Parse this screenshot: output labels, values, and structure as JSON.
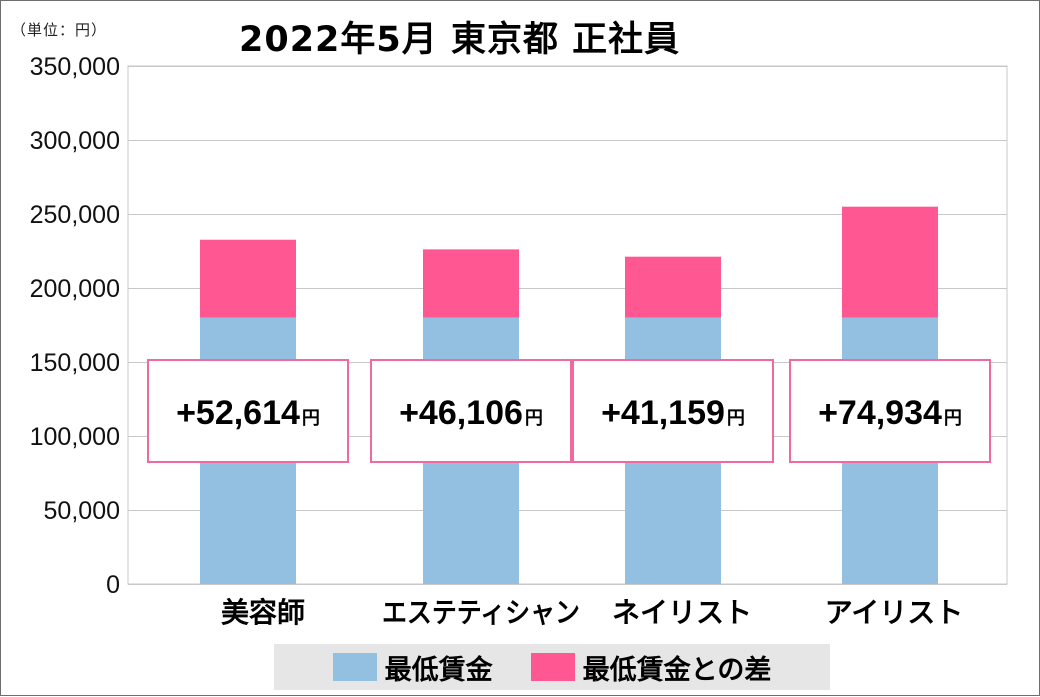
{
  "unit_label": "（単位：円）",
  "title": "2022年5月  東京都 正社員",
  "colors": {
    "base": "#93bfe0",
    "diff": "#ff5791",
    "diff_box_border": "#f06aa0",
    "grid": "#c8c8c8"
  },
  "chart_data": {
    "type": "bar",
    "stacked": true,
    "categories": [
      "美容師",
      "エステティシャン",
      "ネイリスト",
      "アイリスト"
    ],
    "series": [
      {
        "name": "最低賃金",
        "values": [
          180000,
          180000,
          180000,
          180000
        ]
      },
      {
        "name": "最低賃金との差",
        "values": [
          52614,
          46106,
          41159,
          74934
        ]
      }
    ],
    "annotations": [
      "+52,614",
      "+46,106",
      "+41,159",
      "+74,934"
    ],
    "annotation_unit": "円",
    "ylim": [
      0,
      350000
    ],
    "yticks": [
      0,
      50000,
      100000,
      150000,
      200000,
      250000,
      300000,
      350000
    ],
    "ytick_labels": [
      "0",
      "50,000",
      "100,000",
      "150,000",
      "200,000",
      "250,000",
      "300,000",
      "350,000"
    ],
    "grid": true,
    "legend_position": "bottom"
  }
}
